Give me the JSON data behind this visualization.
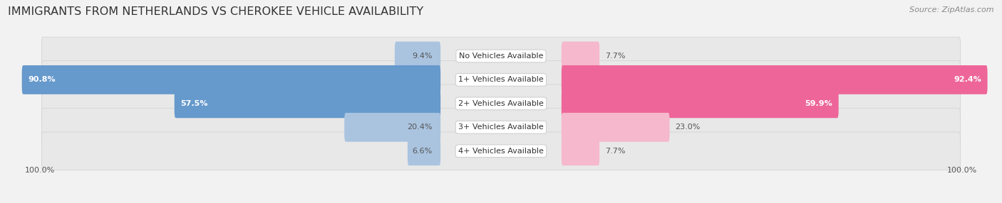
{
  "title": "IMMIGRANTS FROM NETHERLANDS VS CHEROKEE VEHICLE AVAILABILITY",
  "source": "Source: ZipAtlas.com",
  "categories": [
    "No Vehicles Available",
    "1+ Vehicles Available",
    "2+ Vehicles Available",
    "3+ Vehicles Available",
    "4+ Vehicles Available"
  ],
  "netherlands_values": [
    9.4,
    90.8,
    57.5,
    20.4,
    6.6
  ],
  "cherokee_values": [
    7.7,
    92.4,
    59.9,
    23.0,
    7.7
  ],
  "netherlands_color_light": "#aac4e0",
  "netherlands_color_dark": "#6699cc",
  "cherokee_color_light": "#f5b8cc",
  "cherokee_color_dark": "#ee6699",
  "background_color": "#f2f2f2",
  "row_bg_color": "#e8e8e8",
  "label_bg_color": "#ffffff",
  "max_value": 100.0,
  "bar_height": 0.62,
  "title_fontsize": 11.5,
  "source_fontsize": 8,
  "value_fontsize": 8,
  "category_fontsize": 8,
  "legend_fontsize": 8.5,
  "axis_label_fontsize": 8,
  "large_threshold": 40
}
